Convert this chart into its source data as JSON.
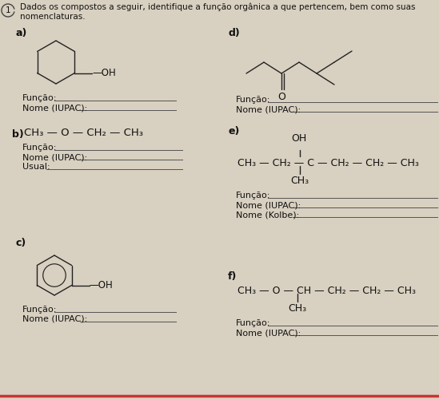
{
  "bg_color": "#d8d0c0",
  "text_color": "#111111",
  "line_color": "#222222",
  "funcao": "Função:",
  "nome_iupac": "Nome (IUPAC):",
  "nome_kolbe": "Nome (Kolbe):",
  "usual": "Usual:",
  "b_formula": "CH₃ — O — CH₂ — CH₃",
  "e_formula_main": "CH₃ — CH₂ — C — CH₂ — CH₂ — CH₃",
  "f_formula_main": "CH₃ — O — CH — CH₂ — CH₂ — CH₃",
  "header": "Dados os compostos a seguir, identifique a função orgânica a que pertencem, bem como suas nomenclaturas."
}
